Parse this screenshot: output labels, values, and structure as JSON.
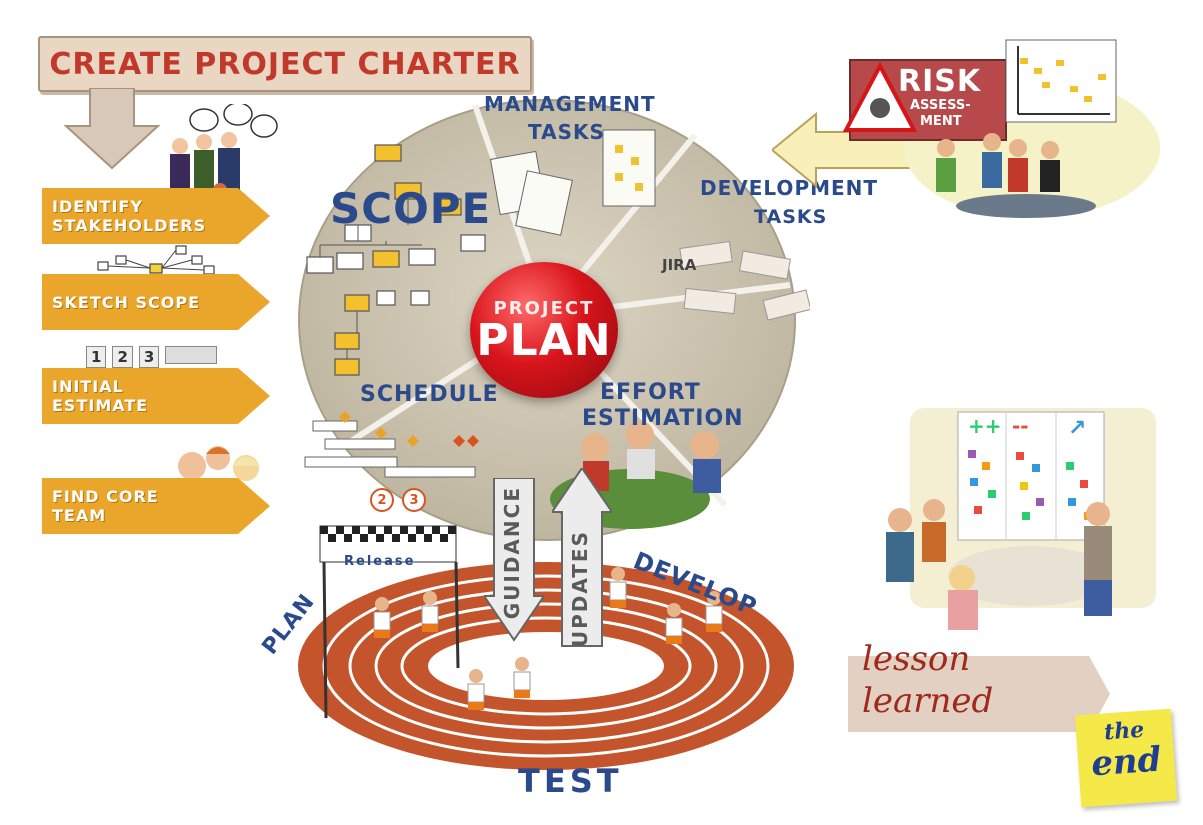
{
  "charter": {
    "title": "CREATE PROJECT CHARTER"
  },
  "steps": [
    {
      "line1": "IDENTIFY",
      "line2": "STAKEHOLDERS"
    },
    {
      "line1": "SKETCH SCOPE",
      "line2": ""
    },
    {
      "line1": "INITIAL",
      "line2": "ESTIMATE"
    },
    {
      "line1": "FIND CORE",
      "line2": "TEAM"
    }
  ],
  "estimate_numbers": [
    "1",
    "2",
    "3"
  ],
  "wheel": {
    "center_line1": "PROJECT",
    "center_line2": "PLAN",
    "segments": {
      "scope": "SCOPE",
      "management_1": "MANAGEMENT",
      "management_2": "TASKS",
      "development_1": "DEVELOPMENT",
      "development_2": "TASKS",
      "jira": "JIRA",
      "schedule": "SCHEDULE",
      "effort_1": "EFFORT",
      "effort_2": "ESTIMATION"
    },
    "schedule_numbers": [
      "2",
      "3"
    ]
  },
  "arrows": {
    "guidance": "GUIDANCE",
    "updates": "UPDATES"
  },
  "track": {
    "release": "Release",
    "plan": "PLAN",
    "develop": "DEVELOP",
    "test": "TEST"
  },
  "risk": {
    "title": "RISK",
    "subtitle_1": "ASSESS-",
    "subtitle_2": "MENT"
  },
  "retro": {
    "plus": "++",
    "minus": "--",
    "arrow": "↗"
  },
  "lesson": {
    "line1": "lesson",
    "line2": "learned"
  },
  "end_note": {
    "line1": "the",
    "line2": "end"
  },
  "colors": {
    "accent_orange": "#e9a62b",
    "title_red": "#c0392b",
    "label_blue": "#2b4a8b",
    "track_red": "#c4542b",
    "wheel_stone": "#cfc8b6"
  }
}
